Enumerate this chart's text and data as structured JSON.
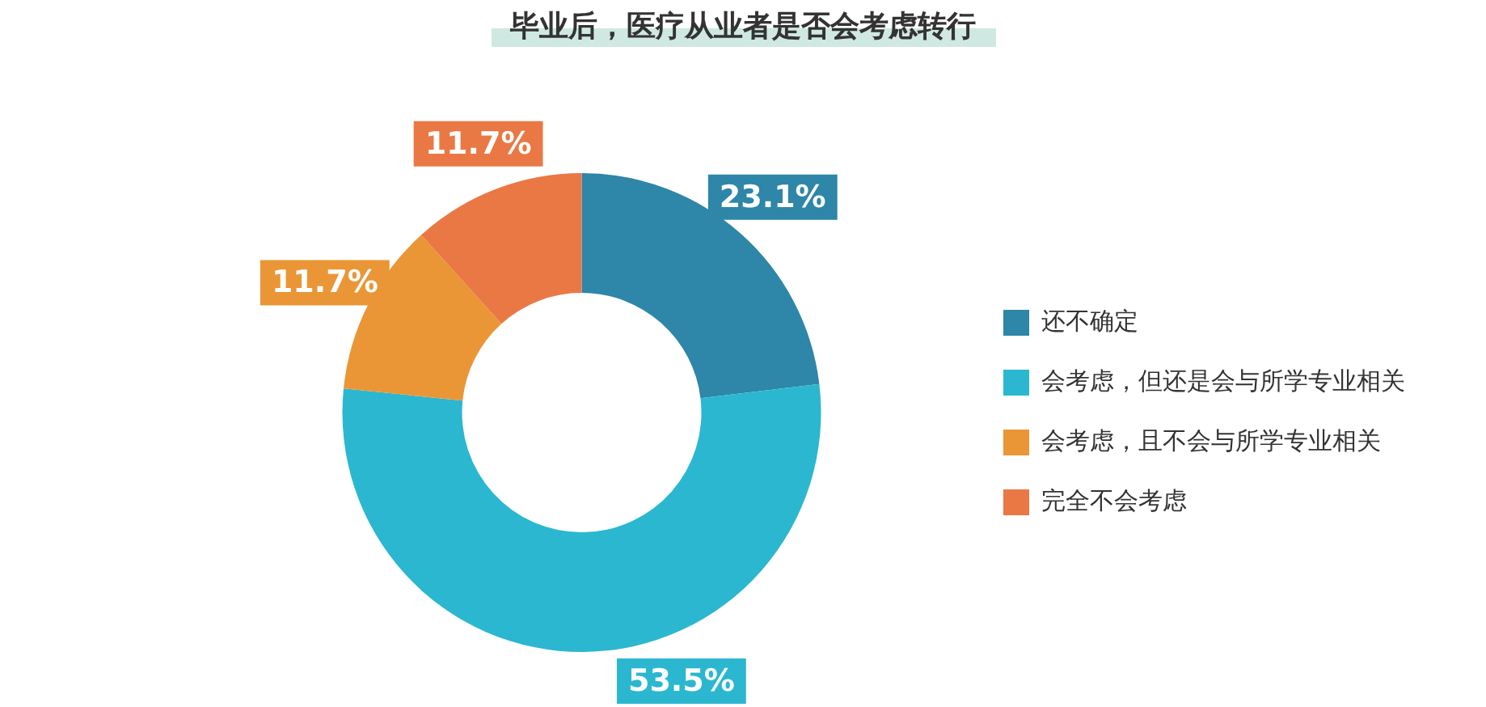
{
  "chart_data": {
    "type": "donut",
    "title": "毕业后，医疗从业者是否会考虑转行",
    "categories": [
      "还不确定",
      "会考虑，但还是会与所学专业相关",
      "会考虑，且不会与所学专业相关",
      "完全不会考虑"
    ],
    "values": [
      23.1,
      53.5,
      11.7,
      11.7
    ],
    "value_labels": [
      "23.1%",
      "53.5%",
      "11.7%",
      "11.7%"
    ],
    "colors": [
      "#2e86a8",
      "#2bb7d0",
      "#ea9636",
      "#ea7844"
    ],
    "legend": "right"
  }
}
